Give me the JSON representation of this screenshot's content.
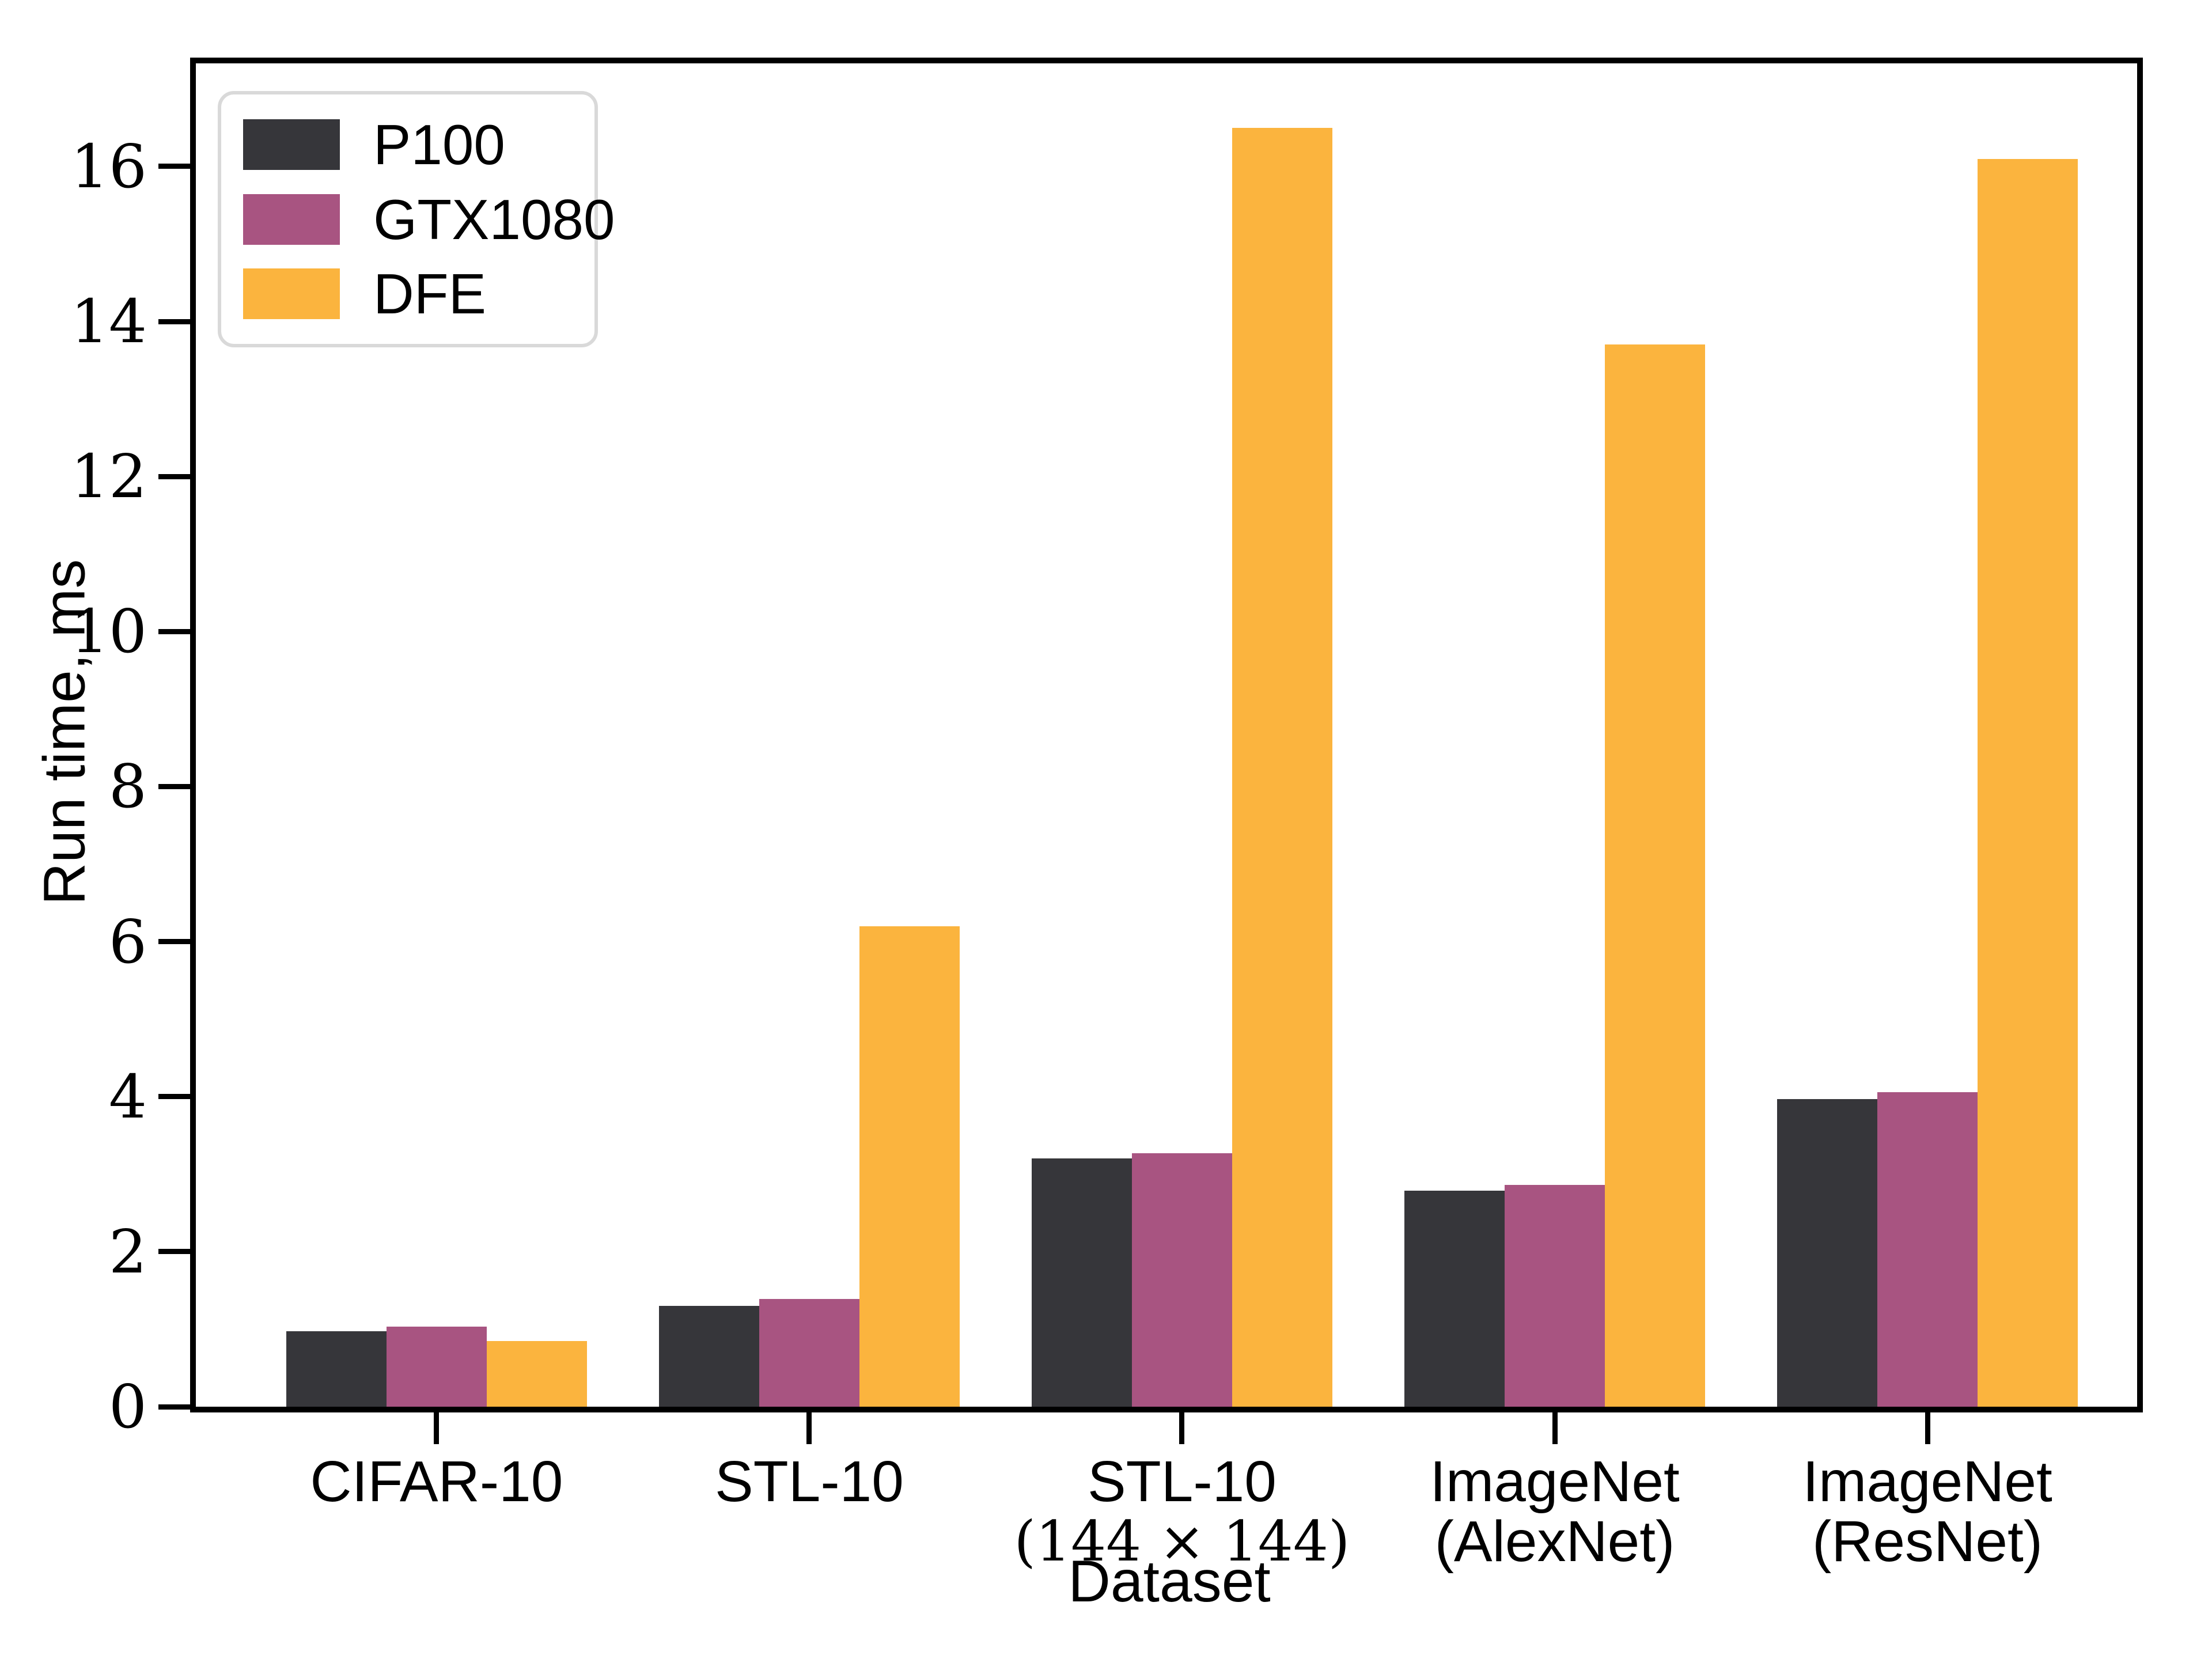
{
  "chart_data": {
    "type": "bar",
    "title": "",
    "xlabel": "Dataset",
    "ylabel": "Run time, ms",
    "categories": [
      {
        "line1": "CIFAR-10",
        "line2": ""
      },
      {
        "line1": "STL-10",
        "line2": ""
      },
      {
        "line1": "STL-10",
        "line2": "(144 × 144)"
      },
      {
        "line1": "ImageNet",
        "line2": "(AlexNet)"
      },
      {
        "line1": "ImageNet",
        "line2": "(ResNet)"
      }
    ],
    "series": [
      {
        "name": "P100",
        "color": "#36363a",
        "values": [
          0.97,
          1.3,
          3.2,
          2.79,
          3.97
        ]
      },
      {
        "name": "GTX1080",
        "color": "#a85481",
        "values": [
          1.03,
          1.39,
          3.27,
          2.86,
          4.06
        ]
      },
      {
        "name": "DFE",
        "color": "#fbb43e",
        "values": [
          0.85,
          6.2,
          16.5,
          13.7,
          16.1
        ]
      }
    ],
    "ylim": [
      0,
      17.33
    ],
    "yticks": [
      0,
      2,
      4,
      6,
      8,
      10,
      12,
      14,
      16
    ],
    "legend_position": "upper-left",
    "grid": false,
    "spine_color": "#000000",
    "background_color": "#ffffff"
  }
}
